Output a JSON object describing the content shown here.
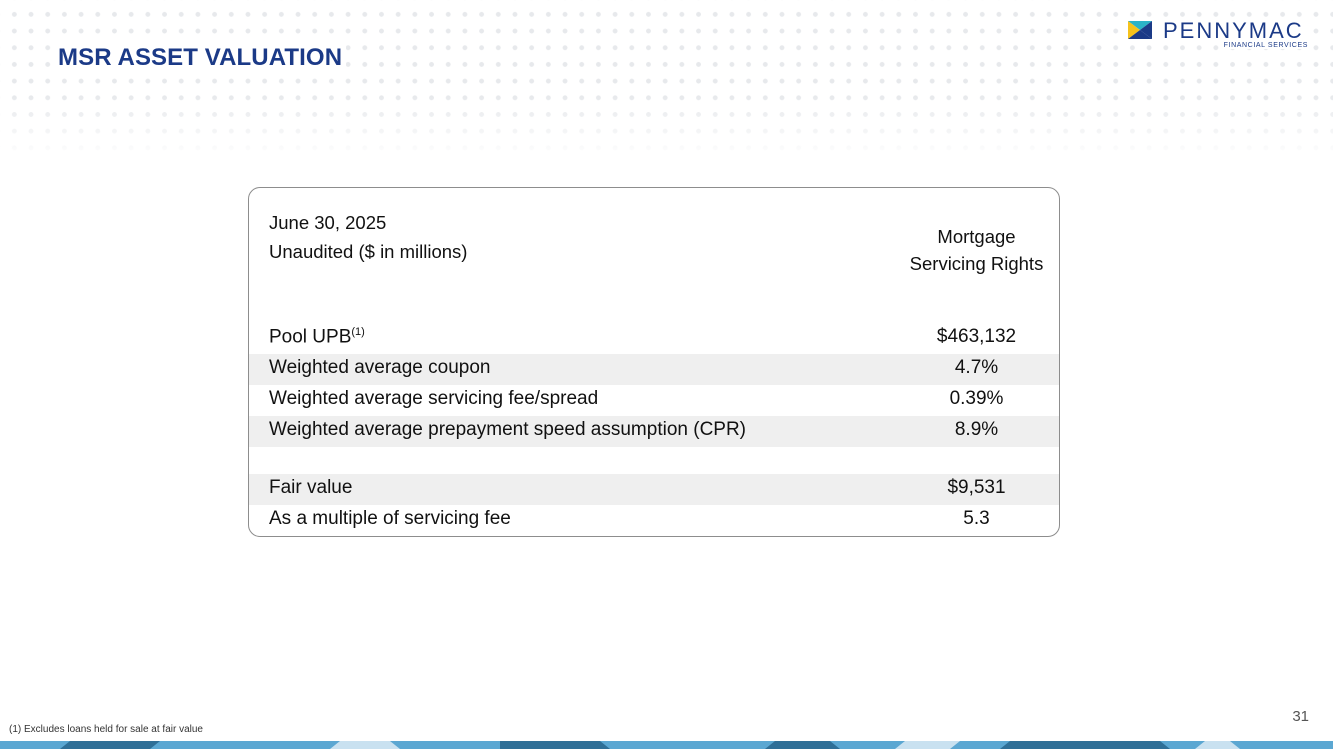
{
  "slide": {
    "title": "MSR ASSET VALUATION",
    "page_number": "31",
    "footnote": "(1) Excludes loans held for sale at fair value"
  },
  "logo": {
    "name": "PENNYMAC",
    "sub": "FINANCIAL SERVICES",
    "colors": {
      "yellow": "#f6c21b",
      "teal": "#2bb3c7",
      "navy": "#1b3a87"
    }
  },
  "table": {
    "date": "June 30, 2025",
    "units": "Unaudited ($ in millions)",
    "column_header_line1": "Mortgage",
    "column_header_line2": "Servicing Rights",
    "rows": [
      {
        "label": "Pool UPB",
        "footnote_ref": "(1)",
        "value": "$463,132",
        "shaded": false
      },
      {
        "label": "Weighted average coupon",
        "value": "4.7%",
        "shaded": true
      },
      {
        "label": "Weighted average servicing fee/spread",
        "value": "0.39%",
        "shaded": false
      },
      {
        "label": "Weighted average prepayment speed assumption (CPR)",
        "value": "8.9%",
        "shaded": true
      },
      {
        "label": "Fair value",
        "value": "$9,531",
        "shaded": true
      },
      {
        "label": "As a multiple of servicing fee",
        "value": "5.3",
        "shaded": false
      }
    ]
  },
  "colors": {
    "title": "#1b3a87",
    "row_shade": "#efefef",
    "band_dark": "#2f6f97",
    "band_light": "#5ba7d2",
    "band_pale": "#c9e1f0"
  }
}
